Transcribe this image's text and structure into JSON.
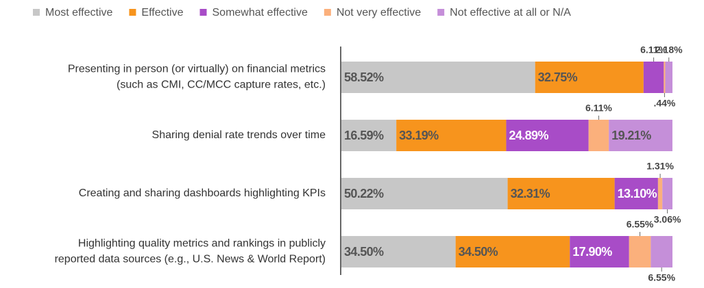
{
  "chart_data": {
    "type": "stacked_barh",
    "categories": [
      [
        "Presenting in person (or virtually) on financial metrics",
        "(such as CMI, CC/MCC capture rates, etc.)"
      ],
      [
        "Sharing denial rate trends over time"
      ],
      [
        "Creating and sharing dashboards highlighting KPIs"
      ],
      [
        "Highlighting quality metrics and rankings in publicly",
        "reported data sources (e.g., U.S. News & World Report)"
      ]
    ],
    "series": [
      {
        "name": "Most effective",
        "color": "#c7c7c7",
        "values": [
          58.52,
          16.59,
          50.22,
          34.5
        ],
        "value_labels": [
          "58.52%",
          "16.59%",
          "50.22%",
          "34.50%"
        ]
      },
      {
        "name": "Effective",
        "color": "#f7941d",
        "values": [
          32.75,
          33.19,
          32.31,
          34.5
        ],
        "value_labels": [
          "32.75%",
          "33.19%",
          "32.31%",
          "34.50%"
        ]
      },
      {
        "name": "Somewhat effective",
        "color": "#a84cc7",
        "values": [
          6.11,
          24.89,
          13.1,
          17.9
        ],
        "value_labels": [
          "6.11%",
          "24.89%",
          "13.10%",
          "17.90%"
        ]
      },
      {
        "name": "Not very effective",
        "color": "#fbb07c",
        "values": [
          0.44,
          6.11,
          1.31,
          6.55
        ],
        "value_labels": [
          ".44%",
          "6.11%",
          "1.31%",
          "6.55%"
        ]
      },
      {
        "name": "Not effective at all or N/A",
        "color": "#c58fd9",
        "values": [
          2.18,
          19.21,
          3.06,
          6.55
        ],
        "value_labels": [
          "2.18%",
          "19.21%",
          "3.06%",
          "6.55%"
        ]
      }
    ],
    "xlim": [
      0,
      100
    ]
  }
}
